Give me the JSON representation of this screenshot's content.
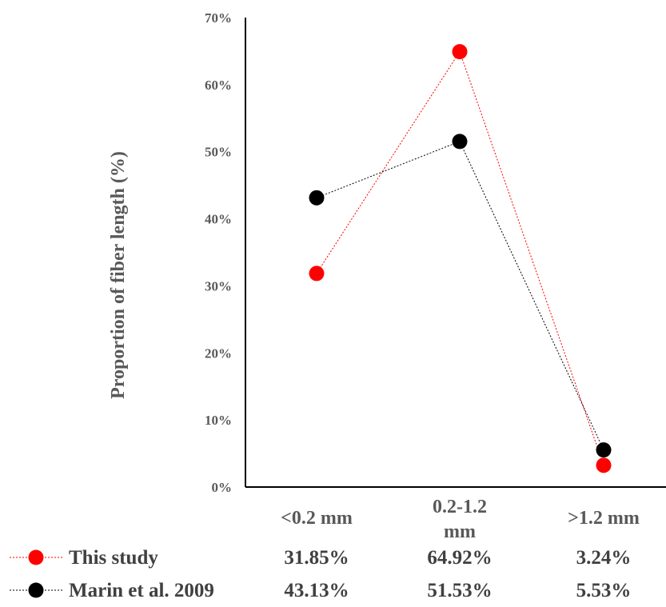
{
  "chart_data": {
    "type": "line",
    "ylabel": "Proportion of fiber length (%)",
    "xlabel": "",
    "categories": [
      "<0.2 mm",
      "0.2-1.2 mm",
      ">1.2 mm"
    ],
    "ylim": [
      0,
      70
    ],
    "yticks": [
      "0%",
      "10%",
      "20%",
      "30%",
      "40%",
      "50%",
      "60%",
      "70%"
    ],
    "grid": false,
    "legend_position": "bottom (data table)",
    "series": [
      {
        "name": "This study",
        "color": "#ff0000",
        "values": [
          31.85,
          64.92,
          3.24
        ],
        "labels": [
          "31.85%",
          "64.92%",
          "3.24%"
        ]
      },
      {
        "name": "Marin et al. 2009",
        "color": "#000000",
        "values": [
          43.13,
          51.53,
          5.53
        ],
        "labels": [
          "43.13%",
          "51.53%",
          "5.53%"
        ]
      }
    ]
  }
}
